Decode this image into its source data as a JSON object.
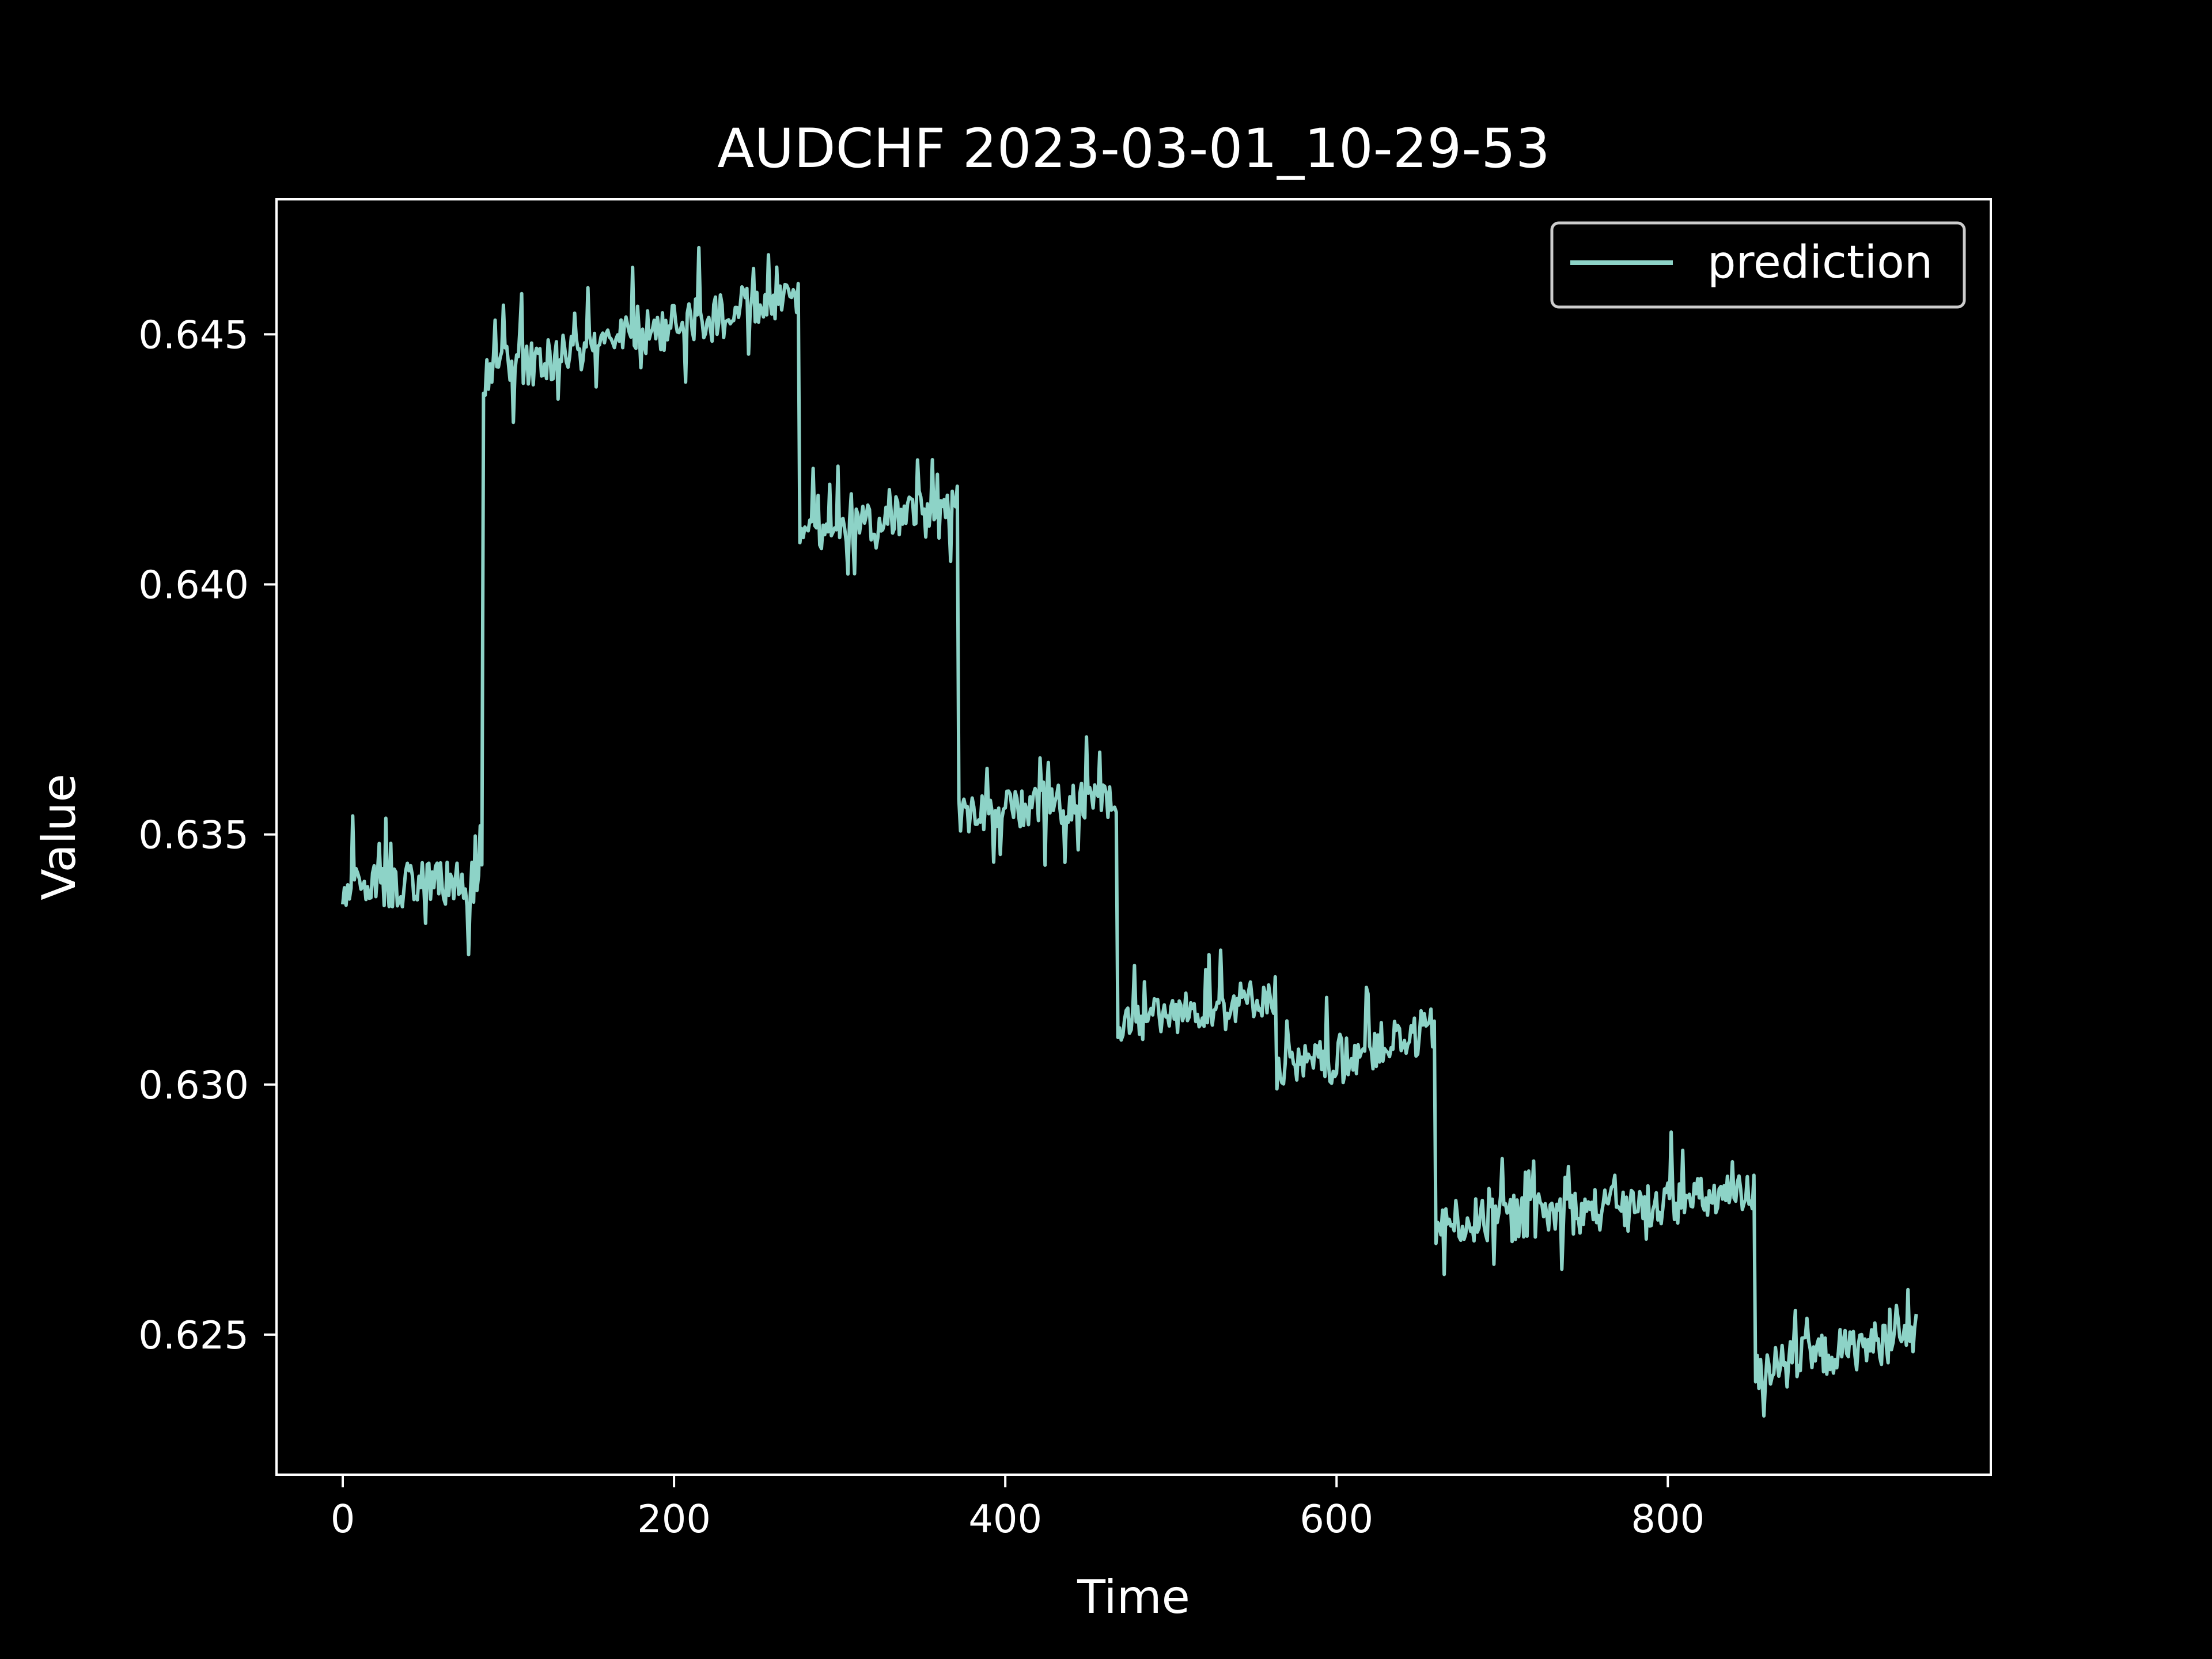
{
  "colors": {
    "background": "#000000",
    "foreground": "#ffffff",
    "series": "#8dd3c7",
    "legend_border": "#cccccc"
  },
  "chart_data": {
    "type": "line",
    "title": "AUDCHF 2023-03-01_10-29-53",
    "xlabel": "Time",
    "ylabel": "Value",
    "xlim": [
      -40,
      995
    ],
    "ylim": [
      0.6222,
      0.6477
    ],
    "xticks": [
      0,
      200,
      400,
      600,
      800
    ],
    "yticks": [
      0.625,
      0.63,
      0.635,
      0.64,
      0.645
    ],
    "xtick_labels": [
      "0",
      "200",
      "400",
      "600",
      "800"
    ],
    "ytick_labels": [
      "0.625",
      "0.630",
      "0.635",
      "0.640",
      "0.645"
    ],
    "grid": false,
    "legend_position": "top-right",
    "x_range": [
      0,
      950
    ],
    "series": [
      {
        "name": "prediction",
        "color": "#8dd3c7",
        "segments": [
          {
            "x_start": 0,
            "x_end": 84,
            "start": 0.634,
            "end": 0.634,
            "noise": 0.00045,
            "spike": 0.0015
          },
          {
            "x_start": 85,
            "x_end": 275,
            "start": 0.6442,
            "end": 0.6458,
            "noise": 0.00045,
            "spike": 0.0012
          },
          {
            "x_start": 276,
            "x_end": 371,
            "start": 0.641,
            "end": 0.6416,
            "noise": 0.0004,
            "spike": 0.0012
          },
          {
            "x_start": 372,
            "x_end": 467,
            "start": 0.6354,
            "end": 0.6357,
            "noise": 0.0004,
            "spike": 0.0013
          },
          {
            "x_start": 468,
            "x_end": 563,
            "start": 0.6312,
            "end": 0.6318,
            "noise": 0.0004,
            "spike": 0.0013
          },
          {
            "x_start": 564,
            "x_end": 659,
            "start": 0.6302,
            "end": 0.6311,
            "noise": 0.00045,
            "spike": 0.0013
          },
          {
            "x_start": 660,
            "x_end": 852,
            "start": 0.6272,
            "end": 0.6278,
            "noise": 0.00045,
            "spike": 0.0013
          },
          {
            "x_start": 853,
            "x_end": 950,
            "start": 0.6243,
            "end": 0.625,
            "noise": 0.00045,
            "spike": 0.0013
          }
        ]
      }
    ]
  }
}
